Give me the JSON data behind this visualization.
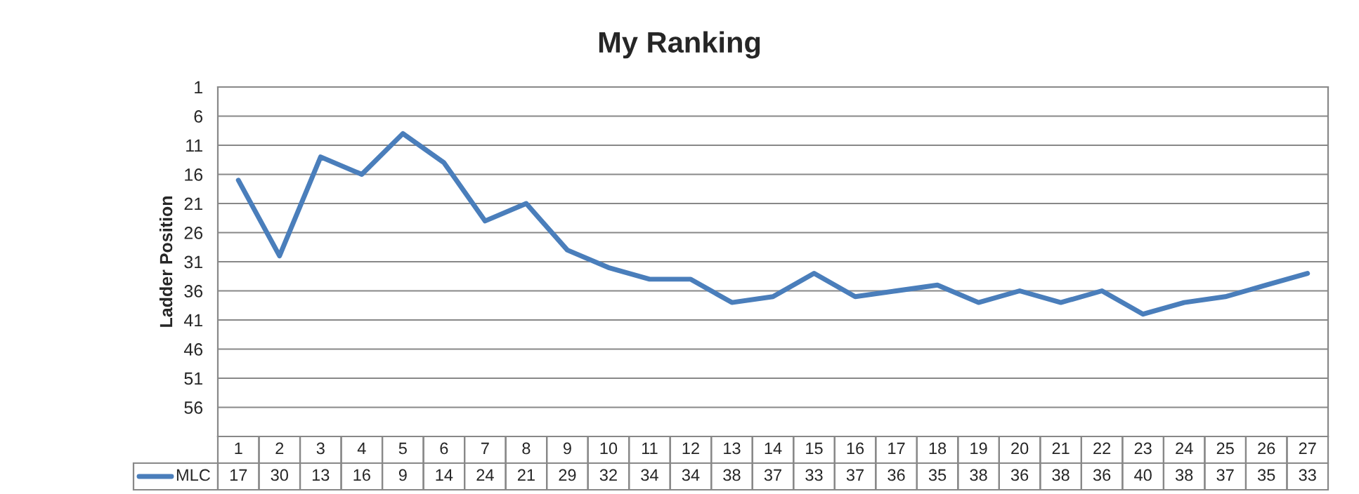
{
  "chart_data": {
    "type": "line",
    "title": "My Ranking",
    "ylabel": "Ladder Position",
    "categories": [
      "1",
      "2",
      "3",
      "4",
      "5",
      "6",
      "7",
      "8",
      "9",
      "10",
      "11",
      "12",
      "13",
      "14",
      "15",
      "16",
      "17",
      "18",
      "19",
      "20",
      "21",
      "22",
      "23",
      "24",
      "25",
      "26",
      "27"
    ],
    "series": [
      {
        "name": "MLC",
        "color": "#4a7ebb",
        "values": [
          17,
          30,
          13,
          16,
          9,
          14,
          24,
          21,
          29,
          32,
          34,
          34,
          38,
          37,
          33,
          37,
          36,
          35,
          38,
          36,
          38,
          36,
          40,
          38,
          37,
          35,
          33
        ]
      }
    ],
    "ylim": [
      61,
      1
    ],
    "yticks": [
      1,
      6,
      11,
      16,
      21,
      26,
      31,
      36,
      41,
      46,
      51,
      56
    ],
    "grid": "y",
    "legend": "bottom",
    "data_labels": true,
    "marker": "none",
    "line_style": "solid"
  }
}
